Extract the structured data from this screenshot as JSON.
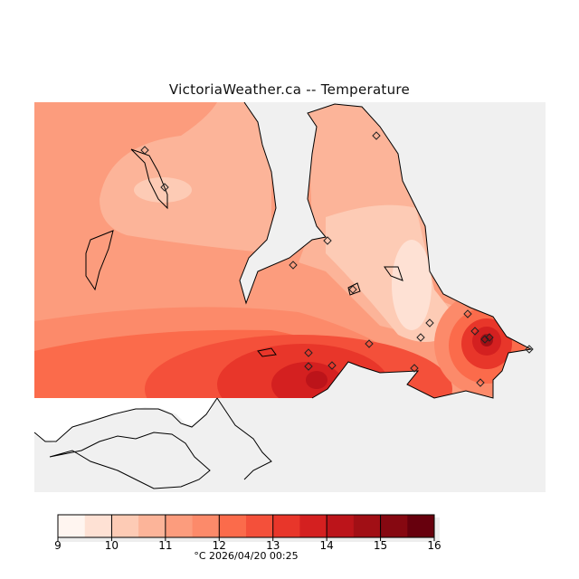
{
  "title": "VictoriaWeather.ca  --  Temperature",
  "colorbar": {
    "ticks": [
      "9",
      "10",
      "11",
      "12",
      "13",
      "14",
      "15",
      "16"
    ],
    "min": 9,
    "max": 16,
    "step": 0.5,
    "colors": [
      "#fff5f0",
      "#fee1d4",
      "#fdcbb5",
      "#fcb499",
      "#fc9c7d",
      "#fc8a6a",
      "#fb6b4b",
      "#f4503a",
      "#e8362a",
      "#d42020",
      "#bc141a",
      "#a10f15",
      "#860811",
      "#67000d"
    ]
  },
  "footer": "°C  2026/04/20 00:25",
  "map": {
    "water_color": "#f0f0f0",
    "land_outside_color": "#ffffff",
    "station_count": 19
  }
}
